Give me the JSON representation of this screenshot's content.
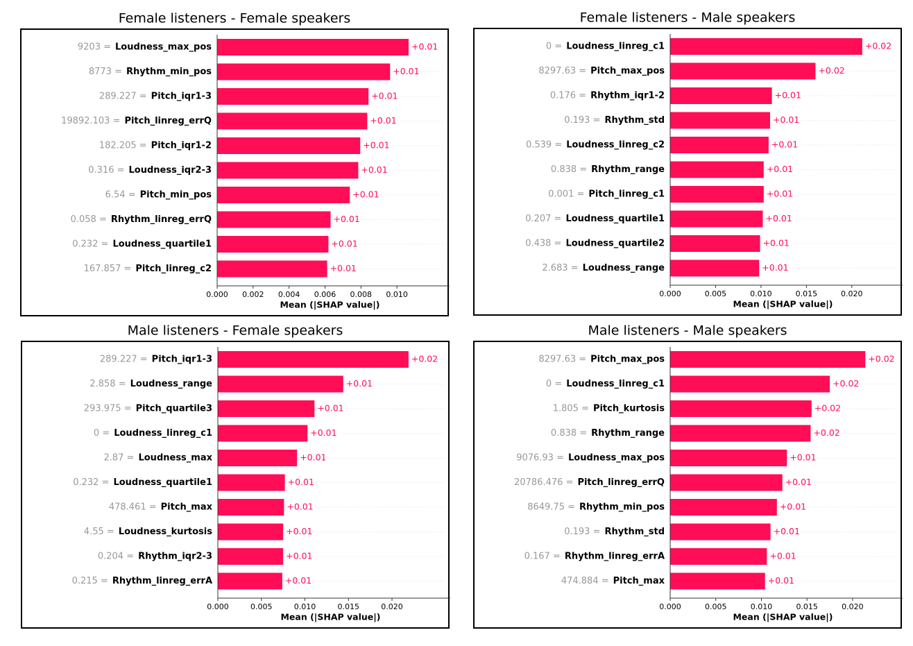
{
  "chart_data": [
    {
      "type": "bar",
      "title": "Female listeners - Female speakers",
      "xlabel": "Mean (|SHAP value|)",
      "color": "#ff0d57",
      "feature_values": [
        "9203 =",
        "8773 =",
        "289.227 =",
        "19892.103 =",
        "182.205 =",
        "0.316 =",
        "6.54 =",
        "0.058 =",
        "0.232 =",
        "167.857 ="
      ],
      "categories": [
        "Loudness_max_pos",
        "Rhythm_min_pos",
        "Pitch_iqr1-3",
        "Pitch_linreg_errQ",
        "Pitch_iqr1-2",
        "Loudness_iqr2-3",
        "Pitch_min_pos",
        "Rhythm_linreg_errQ",
        "Loudness_quartile1",
        "Pitch_linreg_c2"
      ],
      "values": [
        0.01065,
        0.00962,
        0.00842,
        0.00835,
        0.00796,
        0.00785,
        0.00738,
        0.00631,
        0.00619,
        0.00612
      ],
      "value_labels": [
        "+0.01",
        "+0.01",
        "+0.01",
        "+0.01",
        "+0.01",
        "+0.01",
        "+0.01",
        "+0.01",
        "+0.01",
        "+0.01"
      ],
      "xlim": [
        0,
        0.01177
      ],
      "xticks": [
        {
          "value": 0,
          "label": "0.000"
        },
        {
          "value": 0.002,
          "label": "0.002"
        },
        {
          "value": 0.004,
          "label": "0.004"
        },
        {
          "value": 0.006,
          "label": "0.006"
        },
        {
          "value": 0.008,
          "label": "0.008"
        },
        {
          "value": 0.01,
          "label": "0.010"
        }
      ]
    },
    {
      "type": "bar",
      "title": "Female listeners - Male speakers",
      "xlabel": "Mean (|SHAP value|)",
      "color": "#ff0d57",
      "feature_values": [
        "0 =",
        "8297.63 =",
        "0.176 =",
        "0.193 =",
        "0.539 =",
        "0.838 =",
        "0.001 =",
        "0.207 =",
        "0.438 =",
        "2.683 ="
      ],
      "categories": [
        "Loudness_linreg_c1",
        "Pitch_max_pos",
        "Rhythm_iqr1-2",
        "Rhythm_std",
        "Loudness_linreg_c2",
        "Rhythm_range",
        "Pitch_linreg_c1",
        "Loudness_quartile1",
        "Loudness_quartile2",
        "Loudness_range"
      ],
      "values": [
        0.02115,
        0.016,
        0.0112,
        0.011,
        0.01084,
        0.0103,
        0.0103,
        0.0102,
        0.0099,
        0.0098
      ],
      "value_labels": [
        "+0.02",
        "+0.02",
        "+0.01",
        "+0.01",
        "+0.01",
        "+0.01",
        "+0.01",
        "+0.01",
        "+0.01",
        "+0.01"
      ],
      "xlim": [
        0,
        0.0233
      ],
      "xticks": [
        {
          "value": 0,
          "label": "0.000"
        },
        {
          "value": 0.005,
          "label": "0.005"
        },
        {
          "value": 0.01,
          "label": "0.010"
        },
        {
          "value": 0.015,
          "label": "0.015"
        },
        {
          "value": 0.02,
          "label": "0.020"
        }
      ]
    },
    {
      "type": "bar",
      "title": "Male listeners - Female speakers",
      "xlabel": "Mean (|SHAP value|)",
      "color": "#ff0d57",
      "feature_values": [
        "289.227 =",
        "2.858 =",
        "293.975 =",
        "0 =",
        "2.87 =",
        "0.232 =",
        "478.461 =",
        "4.55 =",
        "0.204 =",
        "0.215 ="
      ],
      "categories": [
        "Pitch_iqr1-3",
        "Loudness_range",
        "Pitch_quartile3",
        "Loudness_linreg_c1",
        "Loudness_max",
        "Loudness_quartile1",
        "Pitch_max",
        "Loudness_kurtosis",
        "Rhythm_iqr2-3",
        "Rhythm_linreg_errA"
      ],
      "values": [
        0.0219,
        0.0144,
        0.0111,
        0.0103,
        0.0091,
        0.0077,
        0.0076,
        0.0075,
        0.0075,
        0.0074
      ],
      "value_labels": [
        "+0.02",
        "+0.01",
        "+0.01",
        "+0.01",
        "+0.01",
        "+0.01",
        "+0.01",
        "+0.01",
        "+0.01",
        "+0.01"
      ],
      "xlim": [
        0,
        0.0243
      ],
      "xticks": [
        {
          "value": 0,
          "label": "0.000"
        },
        {
          "value": 0.005,
          "label": "0.005"
        },
        {
          "value": 0.01,
          "label": "0.010"
        },
        {
          "value": 0.015,
          "label": "0.015"
        },
        {
          "value": 0.02,
          "label": "0.020"
        }
      ]
    },
    {
      "type": "bar",
      "title": "Male listeners - Male speakers",
      "xlabel": "Mean (|SHAP value|)",
      "color": "#ff0d57",
      "feature_values": [
        "8297.63 =",
        "0 =",
        "1.805 =",
        "0.838 =",
        "9076.93 =",
        "20786.476 =",
        "8649.75 =",
        "0.193 =",
        "0.167 =",
        "474.884 ="
      ],
      "categories": [
        "Pitch_max_pos",
        "Loudness_linreg_c1",
        "Pitch_kurtosis",
        "Rhythm_range",
        "Loudness_max_pos",
        "Pitch_linreg_errQ",
        "Rhythm_min_pos",
        "Rhythm_std",
        "Rhythm_linreg_errA",
        "Pitch_max"
      ],
      "values": [
        0.0214,
        0.0175,
        0.0155,
        0.0154,
        0.0128,
        0.0123,
        0.0117,
        0.011,
        0.0106,
        0.0104
      ],
      "value_labels": [
        "+0.02",
        "+0.02",
        "+0.02",
        "+0.02",
        "+0.01",
        "+0.01",
        "+0.01",
        "+0.01",
        "+0.01",
        "+0.01"
      ],
      "xlim": [
        0,
        0.0232
      ],
      "xticks": [
        {
          "value": 0,
          "label": "0.000"
        },
        {
          "value": 0.005,
          "label": "0.005"
        },
        {
          "value": 0.01,
          "label": "0.010"
        },
        {
          "value": 0.015,
          "label": "0.015"
        },
        {
          "value": 0.02,
          "label": "0.020"
        }
      ]
    }
  ]
}
